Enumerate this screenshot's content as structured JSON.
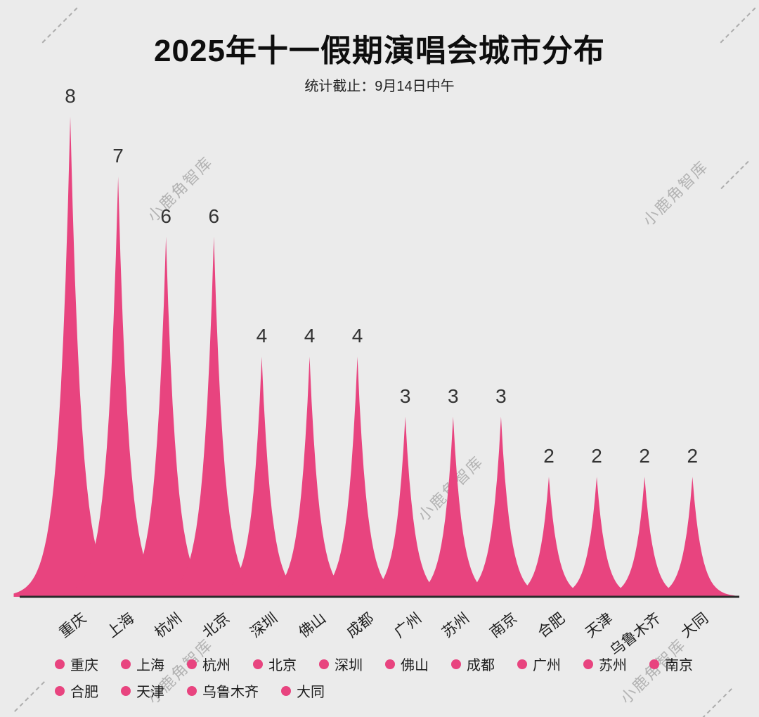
{
  "page": {
    "title": "2025年十一假期演唱会城市分布",
    "subtitle": "统计截止：9月14日中午"
  },
  "watermark": {
    "text": "小鹿角智库"
  },
  "chart_data": {
    "type": "area",
    "title": "2025年十一假期演唱会城市分布",
    "subtitle": "统计截止：9月14日中午",
    "categories": [
      "重庆",
      "上海",
      "杭州",
      "北京",
      "深圳",
      "佛山",
      "成都",
      "广州",
      "苏州",
      "南京",
      "合肥",
      "天津",
      "乌鲁木齐",
      "大同"
    ],
    "values": [
      8,
      7,
      6,
      6,
      4,
      4,
      4,
      3,
      3,
      3,
      2,
      2,
      2,
      2
    ],
    "xlabel": "",
    "ylabel": "",
    "ylim": [
      0,
      8
    ],
    "grid": false,
    "legend_position": "bottom",
    "color": "#e8447f",
    "baseline_color": "#2b2b2b",
    "background_color": "#ebebeb"
  },
  "legend": {
    "items": [
      "重庆",
      "上海",
      "杭州",
      "北京",
      "深圳",
      "佛山",
      "成都",
      "广州",
      "苏州",
      "南京",
      "合肥",
      "天津",
      "乌鲁木齐",
      "大同"
    ]
  }
}
